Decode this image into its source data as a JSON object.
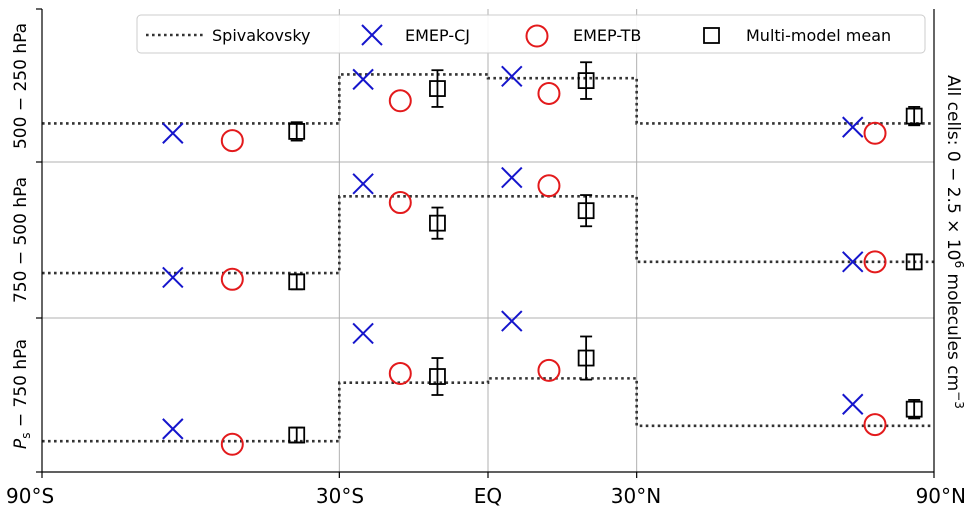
{
  "chart_data": {
    "type": "scatter",
    "xlim": [
      -90,
      90
    ],
    "x_ticks": [
      -90,
      -30,
      0,
      30,
      90
    ],
    "x_tick_labels": [
      "90°S",
      "30°S",
      "EQ",
      "30°N",
      "90°N"
    ],
    "side_label": {
      "prefix": "All cells: 0 − 2.5 × 10",
      "sup": "6",
      "suffix": " molecules cm",
      "sup2": "−3"
    },
    "ylim": [
      0,
      2.5
    ],
    "grid": true,
    "legend_position": "top",
    "legend": [
      {
        "key": "spivakovsky",
        "label": "Spivakovsky",
        "color": "#333333",
        "marker": "dotted-line"
      },
      {
        "key": "emep_cj",
        "label": "EMEP-CJ",
        "color": "#1515cc",
        "marker": "x"
      },
      {
        "key": "emep_tb",
        "label": "EMEP-TB",
        "color": "#e31a1c",
        "marker": "circle"
      },
      {
        "key": "mmm",
        "label": "Multi-model mean",
        "color": "#000000",
        "marker": "square"
      }
    ],
    "bands": [
      "-90..-30",
      "-30..0",
      "0..30",
      "30..90"
    ],
    "rows": [
      {
        "label": "500 − 250 hPa",
        "spivakovsky": [
          0.63,
          1.43,
          1.37,
          0.63
        ],
        "emep_cj": [
          0.47,
          1.35,
          1.4,
          0.57
        ],
        "emep_tb": [
          0.35,
          1.0,
          1.12,
          0.47
        ],
        "mmm": [
          0.5,
          1.2,
          1.33,
          0.75
        ],
        "mmm_err": [
          0.15,
          0.3,
          0.3,
          0.15
        ]
      },
      {
        "label": "750 − 500 hPa",
        "spivakovsky": [
          0.72,
          1.95,
          1.95,
          0.9
        ],
        "emep_cj": [
          0.65,
          2.15,
          2.25,
          0.9
        ],
        "emep_tb": [
          0.62,
          1.85,
          2.12,
          0.9
        ],
        "mmm": [
          0.58,
          1.52,
          1.72,
          0.9
        ],
        "mmm_err": [
          0.12,
          0.25,
          0.25,
          0.12
        ]
      },
      {
        "label_italic": "P",
        "label_sub": "s",
        "label": " − 750 hPa",
        "spivakovsky": [
          0.5,
          1.45,
          1.52,
          0.75
        ],
        "emep_cj": [
          0.7,
          2.25,
          2.45,
          1.1
        ],
        "emep_tb": [
          0.45,
          1.6,
          1.65,
          0.77
        ],
        "mmm": [
          0.6,
          1.55,
          1.85,
          1.02
        ],
        "mmm_err": [
          0.12,
          0.3,
          0.35,
          0.15
        ]
      }
    ]
  }
}
